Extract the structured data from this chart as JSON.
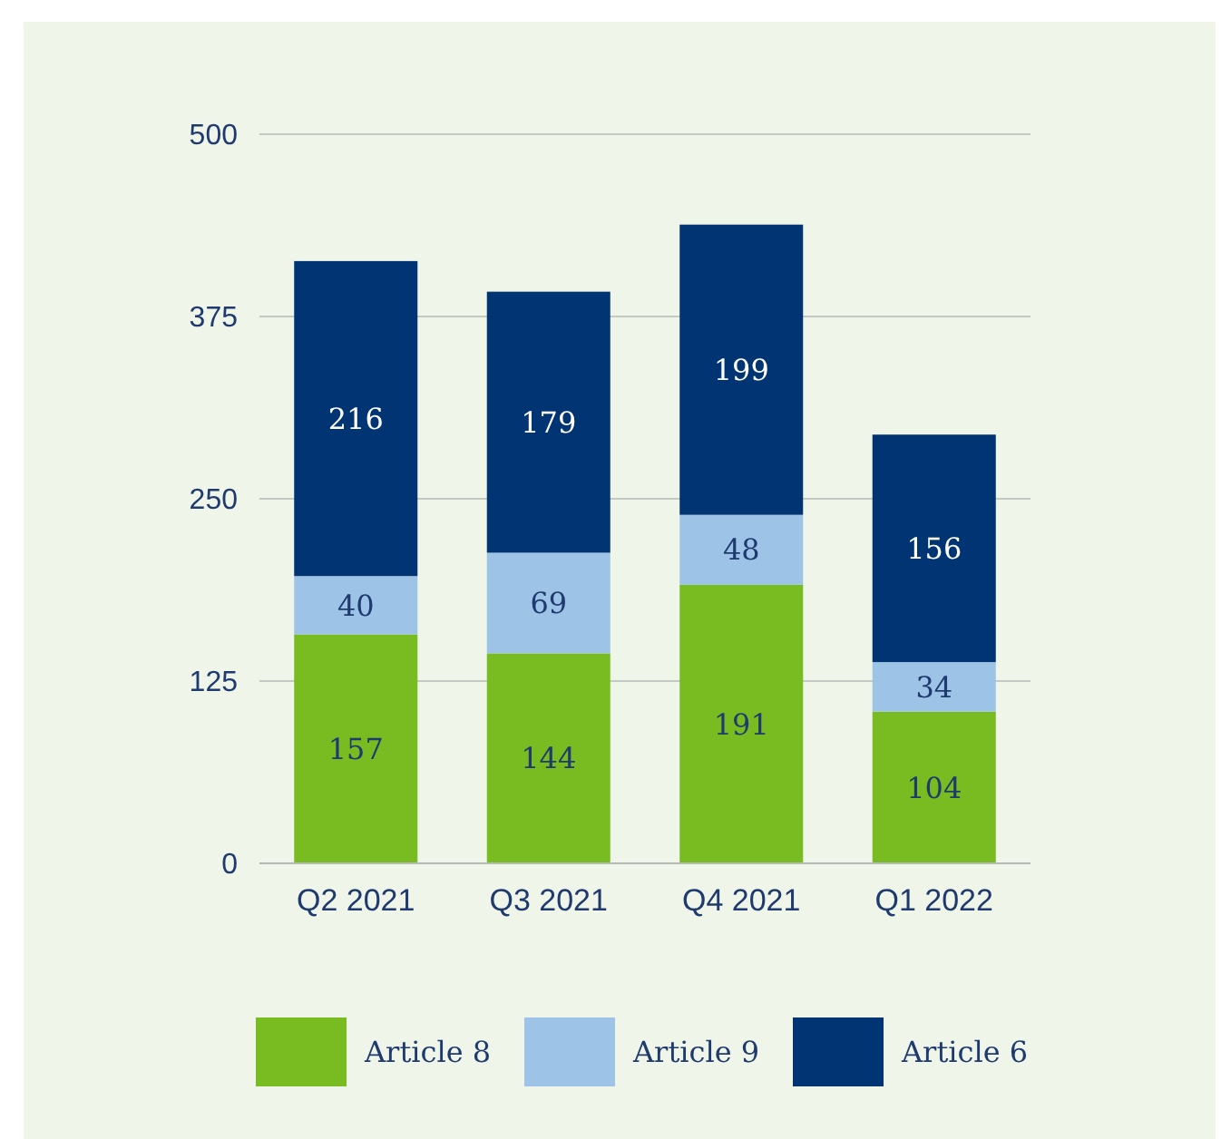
{
  "chart_data": {
    "type": "bar",
    "stacked": true,
    "categories": [
      "Q2 2021",
      "Q3 2021",
      "Q4 2021",
      "Q1 2022"
    ],
    "series": [
      {
        "name": "Article 8",
        "color": "#78bc21",
        "values": [
          157,
          144,
          191,
          104
        ]
      },
      {
        "name": "Article 9",
        "color": "#9dc3e6",
        "values": [
          40,
          69,
          48,
          34
        ]
      },
      {
        "name": "Article 6",
        "color": "#003473",
        "values": [
          216,
          179,
          199,
          156
        ]
      }
    ],
    "ylim": [
      0,
      500
    ],
    "yticks": [
      0,
      125,
      250,
      375,
      500
    ],
    "grid": "y",
    "legend": "bottom",
    "data_labels": true
  }
}
